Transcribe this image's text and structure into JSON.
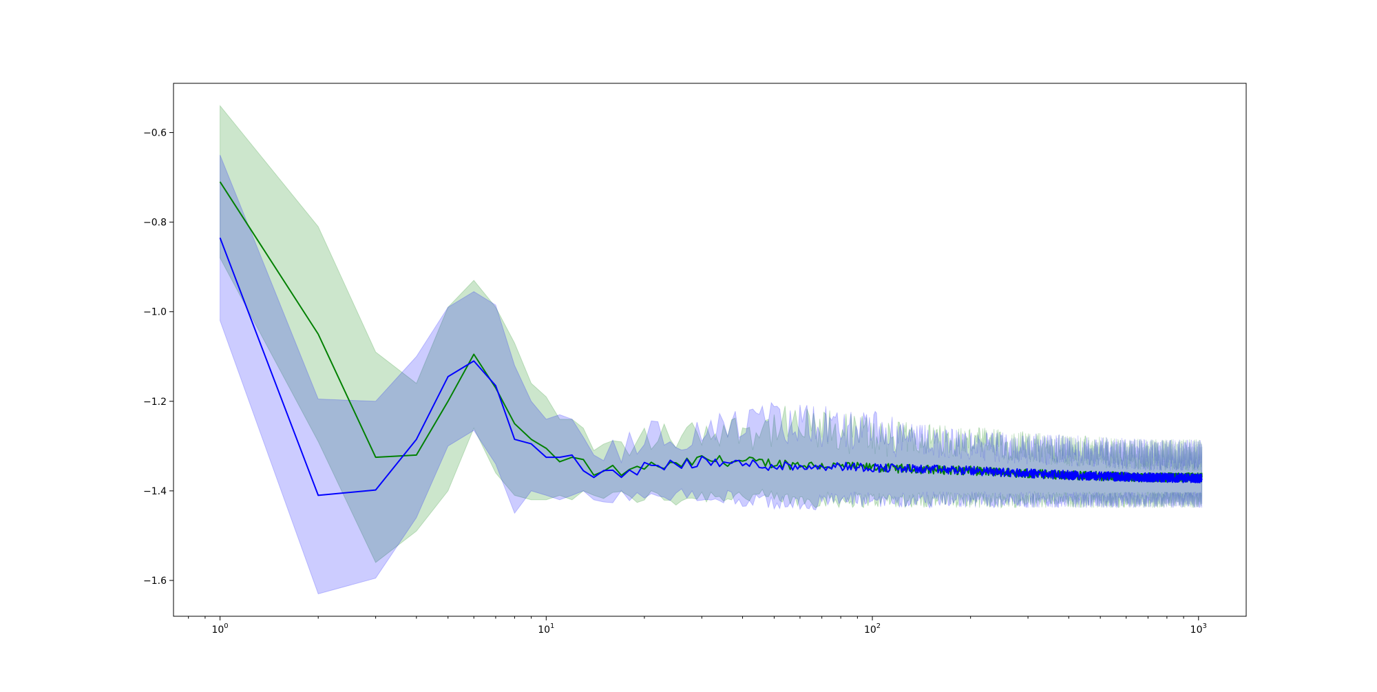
{
  "chart_data": {
    "type": "line",
    "title": "",
    "xlabel": "",
    "ylabel": "",
    "x_scale": "log",
    "xlim": [
      0.72,
      1400
    ],
    "ylim": [
      -1.68,
      -0.49
    ],
    "grid": false,
    "legend": "none",
    "x_ticks": [
      {
        "value": 1,
        "base": "10",
        "exp": "0"
      },
      {
        "value": 10,
        "base": "10",
        "exp": "1"
      },
      {
        "value": 100,
        "base": "10",
        "exp": "2"
      },
      {
        "value": 1000,
        "base": "10",
        "exp": "3"
      }
    ],
    "y_ticks": [
      {
        "value": -0.6,
        "label": "−0.6"
      },
      {
        "value": -0.8,
        "label": "−0.8"
      },
      {
        "value": -1.0,
        "label": "−1.0"
      },
      {
        "value": -1.2,
        "label": "−1.2"
      },
      {
        "value": -1.4,
        "label": "−1.4"
      },
      {
        "value": -1.6,
        "label": "−1.6"
      }
    ],
    "x_max": 1024,
    "series": [
      {
        "color": "#008000",
        "band_color": "#008000",
        "band_opacity": 0.2,
        "points": [
          {
            "x": 1,
            "y": -0.71,
            "lo": -0.88,
            "hi": -0.54
          },
          {
            "x": 2,
            "y": -1.05,
            "lo": -1.29,
            "hi": -0.81
          },
          {
            "x": 3,
            "y": -1.325,
            "lo": -1.56,
            "hi": -1.09
          },
          {
            "x": 4,
            "y": -1.32,
            "lo": -1.49,
            "hi": -1.16
          },
          {
            "x": 5,
            "y": -1.2,
            "lo": -1.4,
            "hi": -0.99
          },
          {
            "x": 6,
            "y": -1.095,
            "lo": -1.26,
            "hi": -0.93
          },
          {
            "x": 7,
            "y": -1.17,
            "lo": -1.36,
            "hi": -0.99
          },
          {
            "x": 8,
            "y": -1.25,
            "lo": -1.41,
            "hi": -1.07
          },
          {
            "x": 9,
            "y": -1.285,
            "lo": -1.42,
            "hi": -1.16
          },
          {
            "x": 10,
            "y": -1.305,
            "lo": -1.42,
            "hi": -1.19
          },
          {
            "x": 11,
            "y": -1.335,
            "lo": -1.41,
            "hi": -1.24
          },
          {
            "x": 12,
            "y": -1.325,
            "lo": -1.42,
            "hi": -1.24
          },
          {
            "x": 13,
            "y": -1.33,
            "lo": -1.4,
            "hi": -1.26
          },
          {
            "x": 14,
            "y": -1.365,
            "lo": -1.41,
            "hi": -1.31
          },
          {
            "x": 16,
            "y": -1.355,
            "lo": -1.41,
            "hi": -1.3
          },
          {
            "x": 18,
            "y": -1.36,
            "lo": -1.42,
            "hi": -1.31
          },
          {
            "x": 20,
            "y": -1.345,
            "lo": -1.41,
            "hi": -1.28
          },
          {
            "x": 25,
            "y": -1.345,
            "lo": -1.42,
            "hi": -1.28
          },
          {
            "x": 30,
            "y": -1.33,
            "lo": -1.41,
            "hi": -1.27
          },
          {
            "x": 40,
            "y": -1.335,
            "lo": -1.41,
            "hi": -1.26
          },
          {
            "x": 55,
            "y": -1.34,
            "lo": -1.42,
            "hi": -1.26
          },
          {
            "x": 80,
            "y": -1.345,
            "lo": -1.42,
            "hi": -1.27
          },
          {
            "x": 120,
            "y": -1.35,
            "lo": -1.42,
            "hi": -1.28
          },
          {
            "x": 200,
            "y": -1.355,
            "lo": -1.42,
            "hi": -1.29
          },
          {
            "x": 400,
            "y": -1.365,
            "lo": -1.42,
            "hi": -1.31
          },
          {
            "x": 700,
            "y": -1.37,
            "lo": -1.42,
            "hi": -1.32
          },
          {
            "x": 1024,
            "y": -1.37,
            "lo": -1.42,
            "hi": -1.32
          }
        ]
      },
      {
        "color": "#0000ff",
        "band_color": "#0000ff",
        "band_opacity": 0.2,
        "points": [
          {
            "x": 1,
            "y": -0.835,
            "lo": -1.02,
            "hi": -0.65
          },
          {
            "x": 2,
            "y": -1.41,
            "lo": -1.63,
            "hi": -1.195
          },
          {
            "x": 3,
            "y": -1.398,
            "lo": -1.595,
            "hi": -1.2
          },
          {
            "x": 4,
            "y": -1.285,
            "lo": -1.46,
            "hi": -1.1
          },
          {
            "x": 5,
            "y": -1.145,
            "lo": -1.3,
            "hi": -0.99
          },
          {
            "x": 6,
            "y": -1.11,
            "lo": -1.265,
            "hi": -0.955
          },
          {
            "x": 7,
            "y": -1.165,
            "lo": -1.34,
            "hi": -0.985
          },
          {
            "x": 8,
            "y": -1.285,
            "lo": -1.45,
            "hi": -1.12
          },
          {
            "x": 9,
            "y": -1.295,
            "lo": -1.4,
            "hi": -1.2
          },
          {
            "x": 10,
            "y": -1.325,
            "lo": -1.41,
            "hi": -1.24
          },
          {
            "x": 11,
            "y": -1.325,
            "lo": -1.42,
            "hi": -1.23
          },
          {
            "x": 12,
            "y": -1.32,
            "lo": -1.41,
            "hi": -1.24
          },
          {
            "x": 13,
            "y": -1.355,
            "lo": -1.4,
            "hi": -1.28
          },
          {
            "x": 14,
            "y": -1.37,
            "lo": -1.42,
            "hi": -1.32
          },
          {
            "x": 16,
            "y": -1.36,
            "lo": -1.41,
            "hi": -1.31
          },
          {
            "x": 18,
            "y": -1.36,
            "lo": -1.42,
            "hi": -1.3
          },
          {
            "x": 20,
            "y": -1.345,
            "lo": -1.4,
            "hi": -1.27
          },
          {
            "x": 25,
            "y": -1.34,
            "lo": -1.41,
            "hi": -1.28
          },
          {
            "x": 30,
            "y": -1.335,
            "lo": -1.41,
            "hi": -1.27
          },
          {
            "x": 40,
            "y": -1.34,
            "lo": -1.42,
            "hi": -1.25
          },
          {
            "x": 55,
            "y": -1.345,
            "lo": -1.43,
            "hi": -1.25
          },
          {
            "x": 80,
            "y": -1.345,
            "lo": -1.42,
            "hi": -1.26
          },
          {
            "x": 120,
            "y": -1.35,
            "lo": -1.42,
            "hi": -1.28
          },
          {
            "x": 200,
            "y": -1.355,
            "lo": -1.42,
            "hi": -1.3
          },
          {
            "x": 400,
            "y": -1.365,
            "lo": -1.42,
            "hi": -1.31
          },
          {
            "x": 700,
            "y": -1.37,
            "lo": -1.42,
            "hi": -1.32
          },
          {
            "x": 1024,
            "y": -1.372,
            "lo": -1.42,
            "hi": -1.32
          }
        ]
      }
    ]
  }
}
